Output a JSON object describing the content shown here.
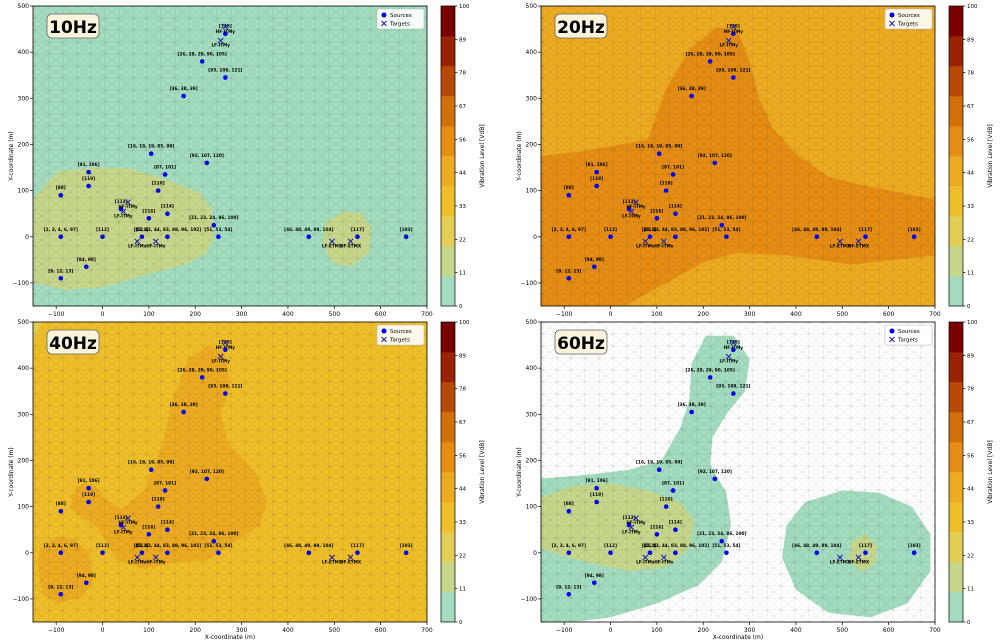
{
  "colorbar": {
    "label": "Vibration Level [VdB]",
    "ticks": [
      "0",
      "11",
      "22",
      "33",
      "44",
      "56",
      "67",
      "78",
      "89",
      "100"
    ],
    "colors": [
      "#a3dcbe",
      "#c6d68a",
      "#e3cf55",
      "#efbf2a",
      "#ecab22",
      "#e58d14",
      "#d4700b",
      "#b84a06",
      "#9a2305",
      "#7a0000"
    ]
  },
  "legend": {
    "sources": "Sources",
    "targets": "Targets"
  },
  "chart_data": [
    {
      "type": "scatter",
      "title": "10Hz",
      "xlabel": "",
      "ylabel": "Y-coordinate (m)",
      "xlim": [
        -150,
        700
      ],
      "ylim": [
        -150,
        500
      ],
      "background_level": "0-11 VdB",
      "zones": [
        {
          "level": "11-22 VdB",
          "outline": [
            [
              -150,
              80
            ],
            [
              -100,
              140
            ],
            [
              -20,
              150
            ],
            [
              60,
              148
            ],
            [
              150,
              120
            ],
            [
              210,
              95
            ],
            [
              235,
              60
            ],
            [
              240,
              0
            ],
            [
              225,
              -35
            ],
            [
              180,
              -60
            ],
            [
              100,
              -80
            ],
            [
              0,
              -110
            ],
            [
              -80,
              -115
            ],
            [
              -150,
              -100
            ]
          ]
        },
        {
          "level": "11-22 VdB",
          "outline": [
            [
              480,
              30
            ],
            [
              520,
              55
            ],
            [
              560,
              50
            ],
            [
              580,
              20
            ],
            [
              575,
              -35
            ],
            [
              535,
              -65
            ],
            [
              495,
              -55
            ],
            [
              475,
              -15
            ]
          ]
        }
      ]
    },
    {
      "type": "scatter",
      "title": "20Hz",
      "xlabel": "",
      "ylabel": "Y-coordinate (m)",
      "xlim": [
        -150,
        700
      ],
      "ylim": [
        -150,
        500
      ],
      "background_level": "44-56 VdB",
      "zones": [
        {
          "level": "56-67 VdB",
          "outline": [
            [
              -150,
              175
            ],
            [
              -60,
              185
            ],
            [
              20,
              200
            ],
            [
              80,
              210
            ],
            [
              120,
              320
            ],
            [
              170,
              405
            ],
            [
              230,
              455
            ],
            [
              275,
              445
            ],
            [
              300,
              380
            ],
            [
              320,
              300
            ],
            [
              350,
              235
            ],
            [
              400,
              180
            ],
            [
              470,
              130
            ],
            [
              550,
              110
            ],
            [
              630,
              95
            ],
            [
              700,
              80
            ],
            [
              700,
              -40
            ],
            [
              520,
              -60
            ],
            [
              380,
              -40
            ],
            [
              270,
              -35
            ],
            [
              200,
              -55
            ],
            [
              120,
              -100
            ],
            [
              30,
              -150
            ],
            [
              -150,
              -150
            ]
          ]
        }
      ]
    },
    {
      "type": "scatter",
      "title": "40Hz",
      "xlabel": "X-coordinate (m)",
      "ylabel": "Y-coordinate (m)",
      "xlim": [
        -150,
        700
      ],
      "ylim": [
        -150,
        500
      ],
      "background_level": "33-44 VdB",
      "zones": [
        {
          "level": "22-33 VdB",
          "outline": [
            [
              -150,
              460
            ],
            [
              -130,
              500
            ],
            [
              -150,
              500
            ]
          ]
        },
        {
          "level": "44-56 VdB",
          "outline": [
            [
              40,
              95
            ],
            [
              90,
              135
            ],
            [
              130,
              235
            ],
            [
              150,
              330
            ],
            [
              185,
              420
            ],
            [
              230,
              450
            ],
            [
              265,
              430
            ],
            [
              275,
              360
            ],
            [
              255,
              300
            ],
            [
              270,
              240
            ],
            [
              330,
              175
            ],
            [
              355,
              110
            ],
            [
              340,
              60
            ],
            [
              280,
              20
            ],
            [
              230,
              -15
            ],
            [
              160,
              -20
            ],
            [
              90,
              -35
            ],
            [
              30,
              -15
            ],
            [
              5,
              30
            ],
            [
              -15,
              60
            ],
            [
              -45,
              75
            ],
            [
              -70,
              100
            ],
            [
              -55,
              145
            ],
            [
              -20,
              150
            ],
            [
              10,
              115
            ]
          ]
        },
        {
          "level": "44-56 VdB",
          "outline": [
            [
              -135,
              10
            ],
            [
              -100,
              35
            ],
            [
              -60,
              30
            ],
            [
              -30,
              0
            ],
            [
              -20,
              -60
            ],
            [
              -45,
              -95
            ],
            [
              -95,
              -110
            ],
            [
              -130,
              -90
            ],
            [
              -140,
              -30
            ]
          ]
        },
        {
          "level": "44-56 VdB",
          "outline": [
            [
              -70,
              120
            ],
            [
              -40,
              150
            ],
            [
              -20,
              140
            ],
            [
              -30,
              105
            ],
            [
              -60,
              100
            ]
          ]
        }
      ]
    },
    {
      "type": "scatter",
      "title": "60Hz",
      "xlabel": "X-coordinate (m)",
      "ylabel": "Y-coordinate (m)",
      "xlim": [
        -150,
        700
      ],
      "ylim": [
        -150,
        500
      ],
      "background_level": "below 0 VdB (unfilled mesh)",
      "zones": [
        {
          "level": "0-11 VdB",
          "outline": [
            [
              -150,
              160
            ],
            [
              -40,
              170
            ],
            [
              40,
              180
            ],
            [
              110,
              200
            ],
            [
              150,
              270
            ],
            [
              170,
              330
            ],
            [
              175,
              410
            ],
            [
              205,
              470
            ],
            [
              265,
              470
            ],
            [
              300,
              420
            ],
            [
              290,
              350
            ],
            [
              250,
              300
            ],
            [
              220,
              250
            ],
            [
              215,
              190
            ],
            [
              250,
              130
            ],
            [
              260,
              60
            ],
            [
              240,
              -20
            ],
            [
              190,
              -70
            ],
            [
              100,
              -110
            ],
            [
              0,
              -140
            ],
            [
              -80,
              -150
            ],
            [
              -150,
              -150
            ]
          ]
        },
        {
          "level": "0-11 VdB",
          "outline": [
            [
              380,
              60
            ],
            [
              420,
              110
            ],
            [
              500,
              135
            ],
            [
              580,
              130
            ],
            [
              650,
              100
            ],
            [
              690,
              40
            ],
            [
              690,
              -40
            ],
            [
              640,
              -110
            ],
            [
              560,
              -140
            ],
            [
              470,
              -130
            ],
            [
              400,
              -80
            ],
            [
              370,
              -10
            ]
          ]
        },
        {
          "level": "11-22 VdB",
          "outline": [
            [
              -150,
              120
            ],
            [
              -80,
              145
            ],
            [
              0,
              150
            ],
            [
              80,
              135
            ],
            [
              150,
              110
            ],
            [
              180,
              70
            ],
            [
              170,
              10
            ],
            [
              120,
              -30
            ],
            [
              40,
              -40
            ],
            [
              -30,
              -25
            ],
            [
              -90,
              -10
            ],
            [
              -150,
              10
            ]
          ]
        },
        {
          "level": "11-22 VdB",
          "outline": [
            [
              520,
              25
            ],
            [
              550,
              40
            ],
            [
              575,
              15
            ],
            [
              570,
              -25
            ],
            [
              540,
              -40
            ],
            [
              515,
              -15
            ]
          ]
        }
      ]
    }
  ],
  "sources": [
    {
      "label": "[118]",
      "x": 265,
      "y": 440
    },
    {
      "label": "[26, 28, 29, 90, 105]",
      "x": 215,
      "y": 380
    },
    {
      "label": "[93, 108, 121]",
      "x": 265,
      "y": 345
    },
    {
      "label": "[36, 38, 39]",
      "x": 175,
      "y": 305
    },
    {
      "label": "[16, 18, 19, 85, 99]",
      "x": 105,
      "y": 180
    },
    {
      "label": "[92, 107, 120]",
      "x": 225,
      "y": 160
    },
    {
      "label": "[91, 106]",
      "x": -30,
      "y": 140
    },
    {
      "label": "[87, 101]",
      "x": 135,
      "y": 135
    },
    {
      "label": "[119]",
      "x": -30,
      "y": 110
    },
    {
      "label": "[110]",
      "x": 120,
      "y": 100
    },
    {
      "label": "[88]",
      "x": -90,
      "y": 90
    },
    {
      "label": "[113]",
      "x": 40,
      "y": 60
    },
    {
      "label": "[114]",
      "x": 140,
      "y": 50
    },
    {
      "label": "[116]",
      "x": 100,
      "y": 40
    },
    {
      "label": "[21, 23, 24, 86, 100]",
      "x": 240,
      "y": 25
    },
    {
      "label": "[2, 3, 4, 6, 97]",
      "x": -90,
      "y": 0
    },
    {
      "label": "[112]",
      "x": 0,
      "y": 0
    },
    {
      "label": "[111]",
      "x": 85,
      "y": 0
    },
    {
      "label": "[41, 43, 44, 83, 88, 96, 102]",
      "x": 140,
      "y": 0
    },
    {
      "label": "[51, 53, 54]",
      "x": 250,
      "y": 0
    },
    {
      "label": "[46, 48, 49, 89, 104]",
      "x": 445,
      "y": 0
    },
    {
      "label": "[117]",
      "x": 550,
      "y": 0
    },
    {
      "label": "[103]",
      "x": 655,
      "y": 0
    },
    {
      "label": "[94, 98]",
      "x": -35,
      "y": -65
    },
    {
      "label": "[9, 12, 13]",
      "x": -90,
      "y": -90
    }
  ],
  "targets": [
    {
      "label": "HF-ITMy",
      "x": 265,
      "y": 455
    },
    {
      "label": "LF-ITMy",
      "x": 255,
      "y": 425
    },
    {
      "label": "HF-ITMy",
      "x": 55,
      "y": 75
    },
    {
      "label": "LF-ITMy",
      "x": 45,
      "y": 55
    },
    {
      "label": "LF-ITMx",
      "x": 75,
      "y": -10
    },
    {
      "label": "HF-ITMx",
      "x": 115,
      "y": -10
    },
    {
      "label": "LF-ETMX",
      "x": 495,
      "y": -10
    },
    {
      "label": "HF-ETMX",
      "x": 535,
      "y": -10
    }
  ],
  "axes": {
    "xticks": [
      "−100",
      "0",
      "100",
      "200",
      "300",
      "400",
      "500",
      "600",
      "700"
    ],
    "yticks": [
      "−100",
      "0",
      "100",
      "200",
      "300",
      "400",
      "500"
    ]
  }
}
